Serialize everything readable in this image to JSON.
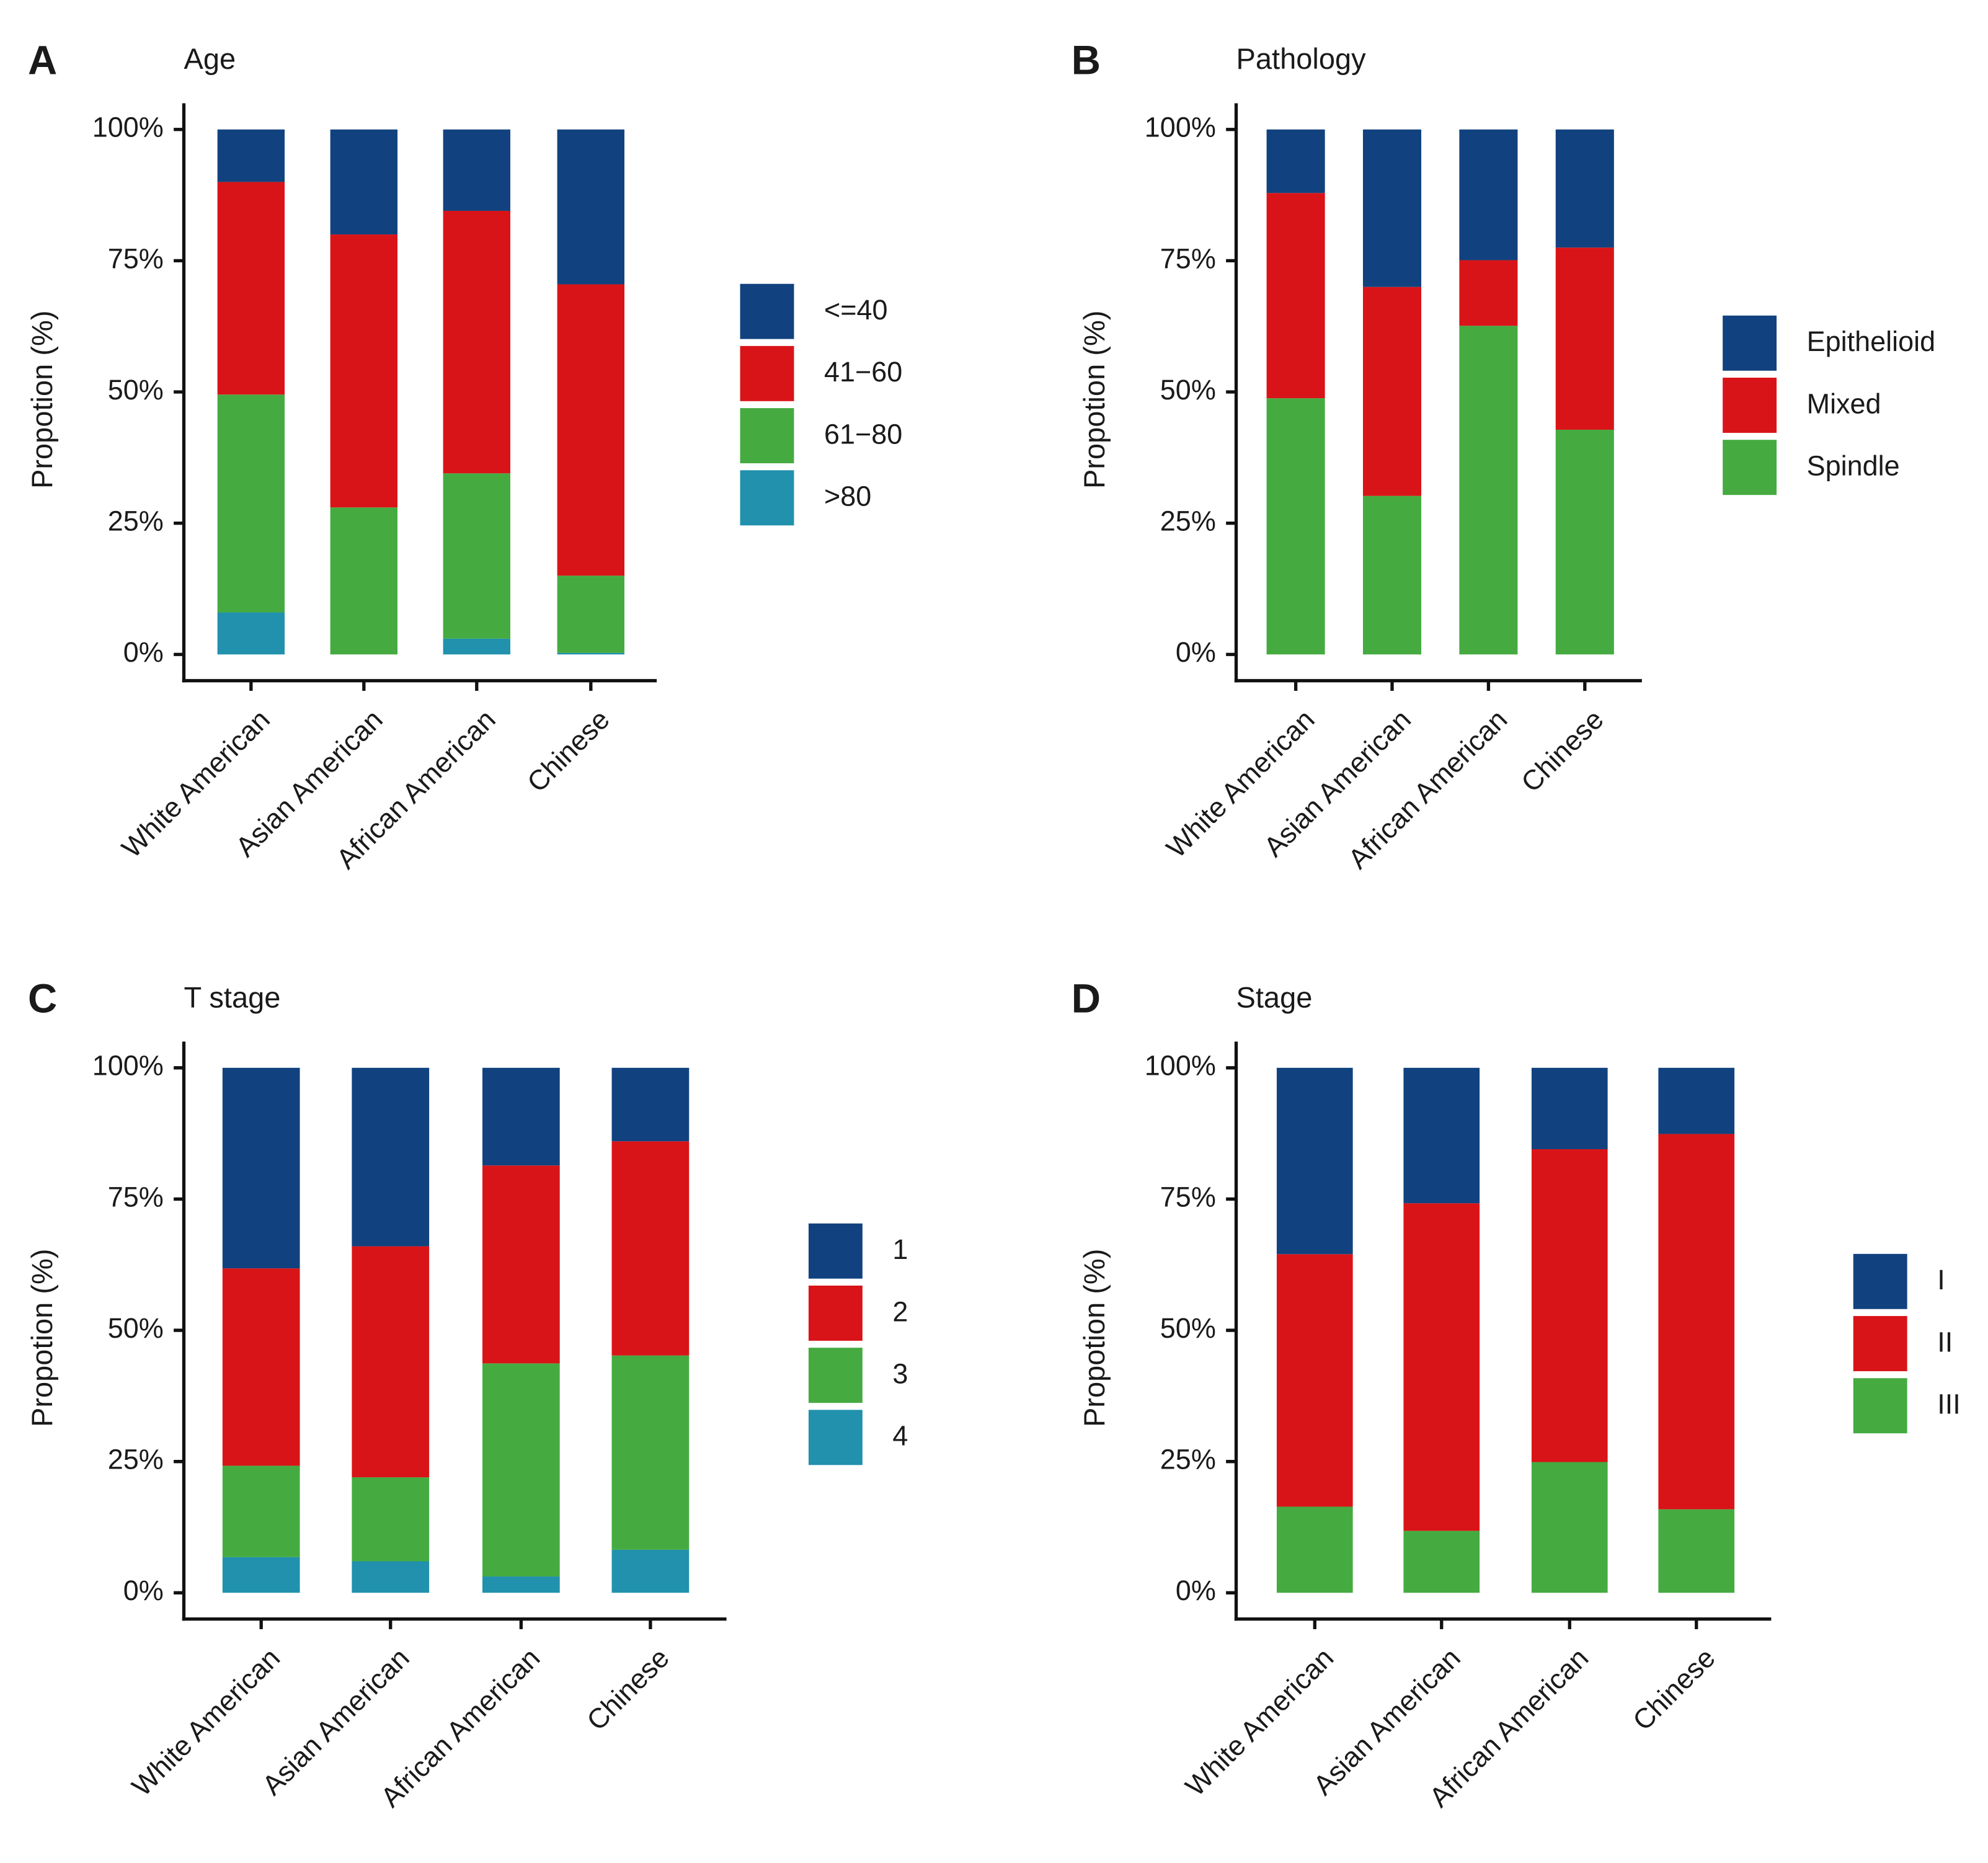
{
  "chart_data": [
    {
      "type": "bar",
      "stacked": true,
      "panel": "A",
      "title": "Age",
      "y_label": "Propotion (%)",
      "categories": [
        "White American",
        "Asian American",
        "African American",
        "Chinese"
      ],
      "series": [
        {
          "name": "<=40",
          "color": "#11427f",
          "values": [
            10,
            20,
            15.5,
            29.5
          ]
        },
        {
          "name": "41−60",
          "color": "#d91418",
          "values": [
            40.5,
            52,
            50,
            55.5
          ]
        },
        {
          "name": "61−80",
          "color": "#45ab41",
          "values": [
            41.5,
            28,
            31.5,
            14.7
          ]
        },
        {
          "name": ">80",
          "color": "#2191ad",
          "values": [
            8,
            0,
            3,
            0.3
          ]
        }
      ],
      "ylim": [
        -5,
        105
      ],
      "yticks": [
        {
          "value": 0,
          "label": "0%"
        },
        {
          "value": 25,
          "label": "25%"
        },
        {
          "value": 50,
          "label": "50%"
        },
        {
          "value": 75,
          "label": "75%"
        },
        {
          "value": 100,
          "label": "100%"
        }
      ],
      "legend": "right"
    },
    {
      "type": "bar",
      "stacked": true,
      "panel": "B",
      "title": "Pathology",
      "y_label": "Propotion (%)",
      "categories": [
        "White American",
        "Asian American",
        "African American",
        "Chinese"
      ],
      "series": [
        {
          "name": "Epithelioid",
          "color": "#11427f",
          "values": [
            12.1,
            30,
            24.9,
            22.5
          ]
        },
        {
          "name": "Mixed",
          "color": "#d91418",
          "values": [
            39.1,
            39.8,
            12.5,
            34.7
          ]
        },
        {
          "name": "Spindle",
          "color": "#45ab41",
          "values": [
            48.8,
            30.2,
            62.6,
            42.8
          ]
        }
      ],
      "ylim": [
        -5,
        105
      ],
      "yticks": [
        {
          "value": 0,
          "label": "0%"
        },
        {
          "value": 25,
          "label": "25%"
        },
        {
          "value": 50,
          "label": "50%"
        },
        {
          "value": 75,
          "label": "75%"
        },
        {
          "value": 100,
          "label": "100%"
        }
      ],
      "legend": "right"
    },
    {
      "type": "bar",
      "stacked": true,
      "panel": "C",
      "title": "T stage",
      "y_label": "Propotion (%)",
      "categories": [
        "White American",
        "Asian American",
        "African American",
        "Chinese"
      ],
      "series": [
        {
          "name": "1",
          "color": "#11427f",
          "values": [
            38.2,
            34,
            18.6,
            14
          ]
        },
        {
          "name": "2",
          "color": "#d91418",
          "values": [
            37.6,
            44,
            37.7,
            40.8
          ]
        },
        {
          "name": "3",
          "color": "#45ab41",
          "values": [
            17.4,
            16,
            40.6,
            37
          ]
        },
        {
          "name": "4",
          "color": "#2191ad",
          "values": [
            6.8,
            6,
            3.1,
            8.2
          ]
        }
      ],
      "ylim": [
        -5,
        105
      ],
      "yticks": [
        {
          "value": 0,
          "label": "0%"
        },
        {
          "value": 25,
          "label": "25%"
        },
        {
          "value": 50,
          "label": "50%"
        },
        {
          "value": 75,
          "label": "75%"
        },
        {
          "value": 100,
          "label": "100%"
        }
      ],
      "legend": "right"
    },
    {
      "type": "bar",
      "stacked": true,
      "panel": "D",
      "title": "Stage",
      "y_label": "Propotion (%)",
      "categories": [
        "White American",
        "Asian American",
        "African American",
        "Chinese"
      ],
      "series": [
        {
          "name": "I",
          "color": "#11427f",
          "values": [
            35.5,
            25.8,
            15.5,
            12.6
          ]
        },
        {
          "name": "II",
          "color": "#d91418",
          "values": [
            48.1,
            62.4,
            59.6,
            71.5
          ]
        },
        {
          "name": "III",
          "color": "#45ab41",
          "values": [
            16.4,
            11.8,
            24.9,
            15.9
          ]
        }
      ],
      "ylim": [
        -5,
        105
      ],
      "yticks": [
        {
          "value": 0,
          "label": "0%"
        },
        {
          "value": 25,
          "label": "25%"
        },
        {
          "value": 50,
          "label": "50%"
        },
        {
          "value": 75,
          "label": "75%"
        },
        {
          "value": 100,
          "label": "100%"
        }
      ],
      "legend": "right"
    }
  ]
}
